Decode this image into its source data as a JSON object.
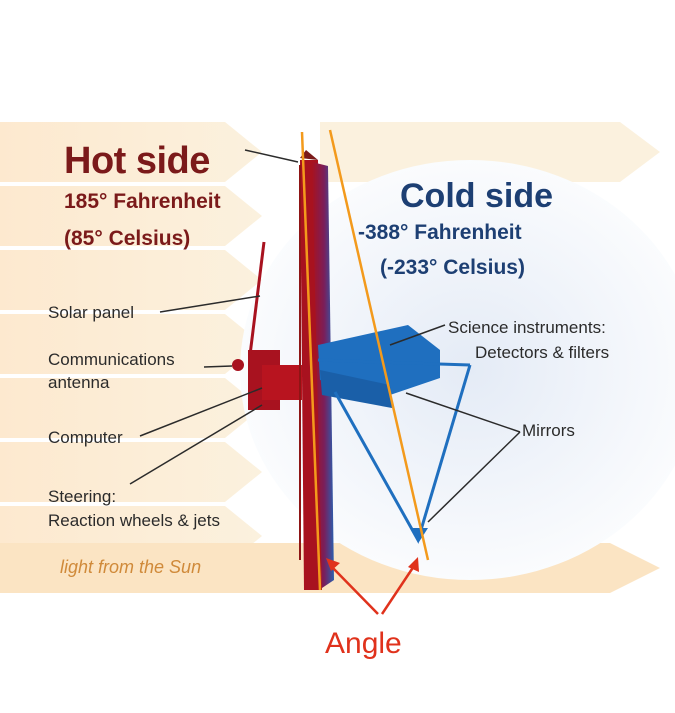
{
  "hot_side": {
    "title": "Hot side",
    "fahrenheit": "185° Fahrenheit",
    "celsius": "(85° Celsius)"
  },
  "cold_side": {
    "title": "Cold side",
    "fahrenheit": "-388° Fahrenheit",
    "celsius": "(-233° Celsius)"
  },
  "labels": {
    "solar_panel": "Solar panel",
    "comm_antenna_1": "Communications",
    "comm_antenna_2": "antenna",
    "computer": "Computer",
    "steering_1": "Steering:",
    "steering_2": "Reaction wheels & jets",
    "science_1": "Science instruments:",
    "science_2": "Detectors & filters",
    "mirrors": "Mirrors",
    "sunlight": "light from the Sun",
    "angle": "Angle"
  },
  "colors": {
    "hot": "#7b1a1a",
    "cold": "#1d3f73",
    "spacecraft_hot": "#a8121f",
    "spacecraft_cold": "#1f6fbf",
    "guide_lines": "#f39a1c",
    "annotation": "#e0321c",
    "sun_rays": "#fbe7c4"
  }
}
